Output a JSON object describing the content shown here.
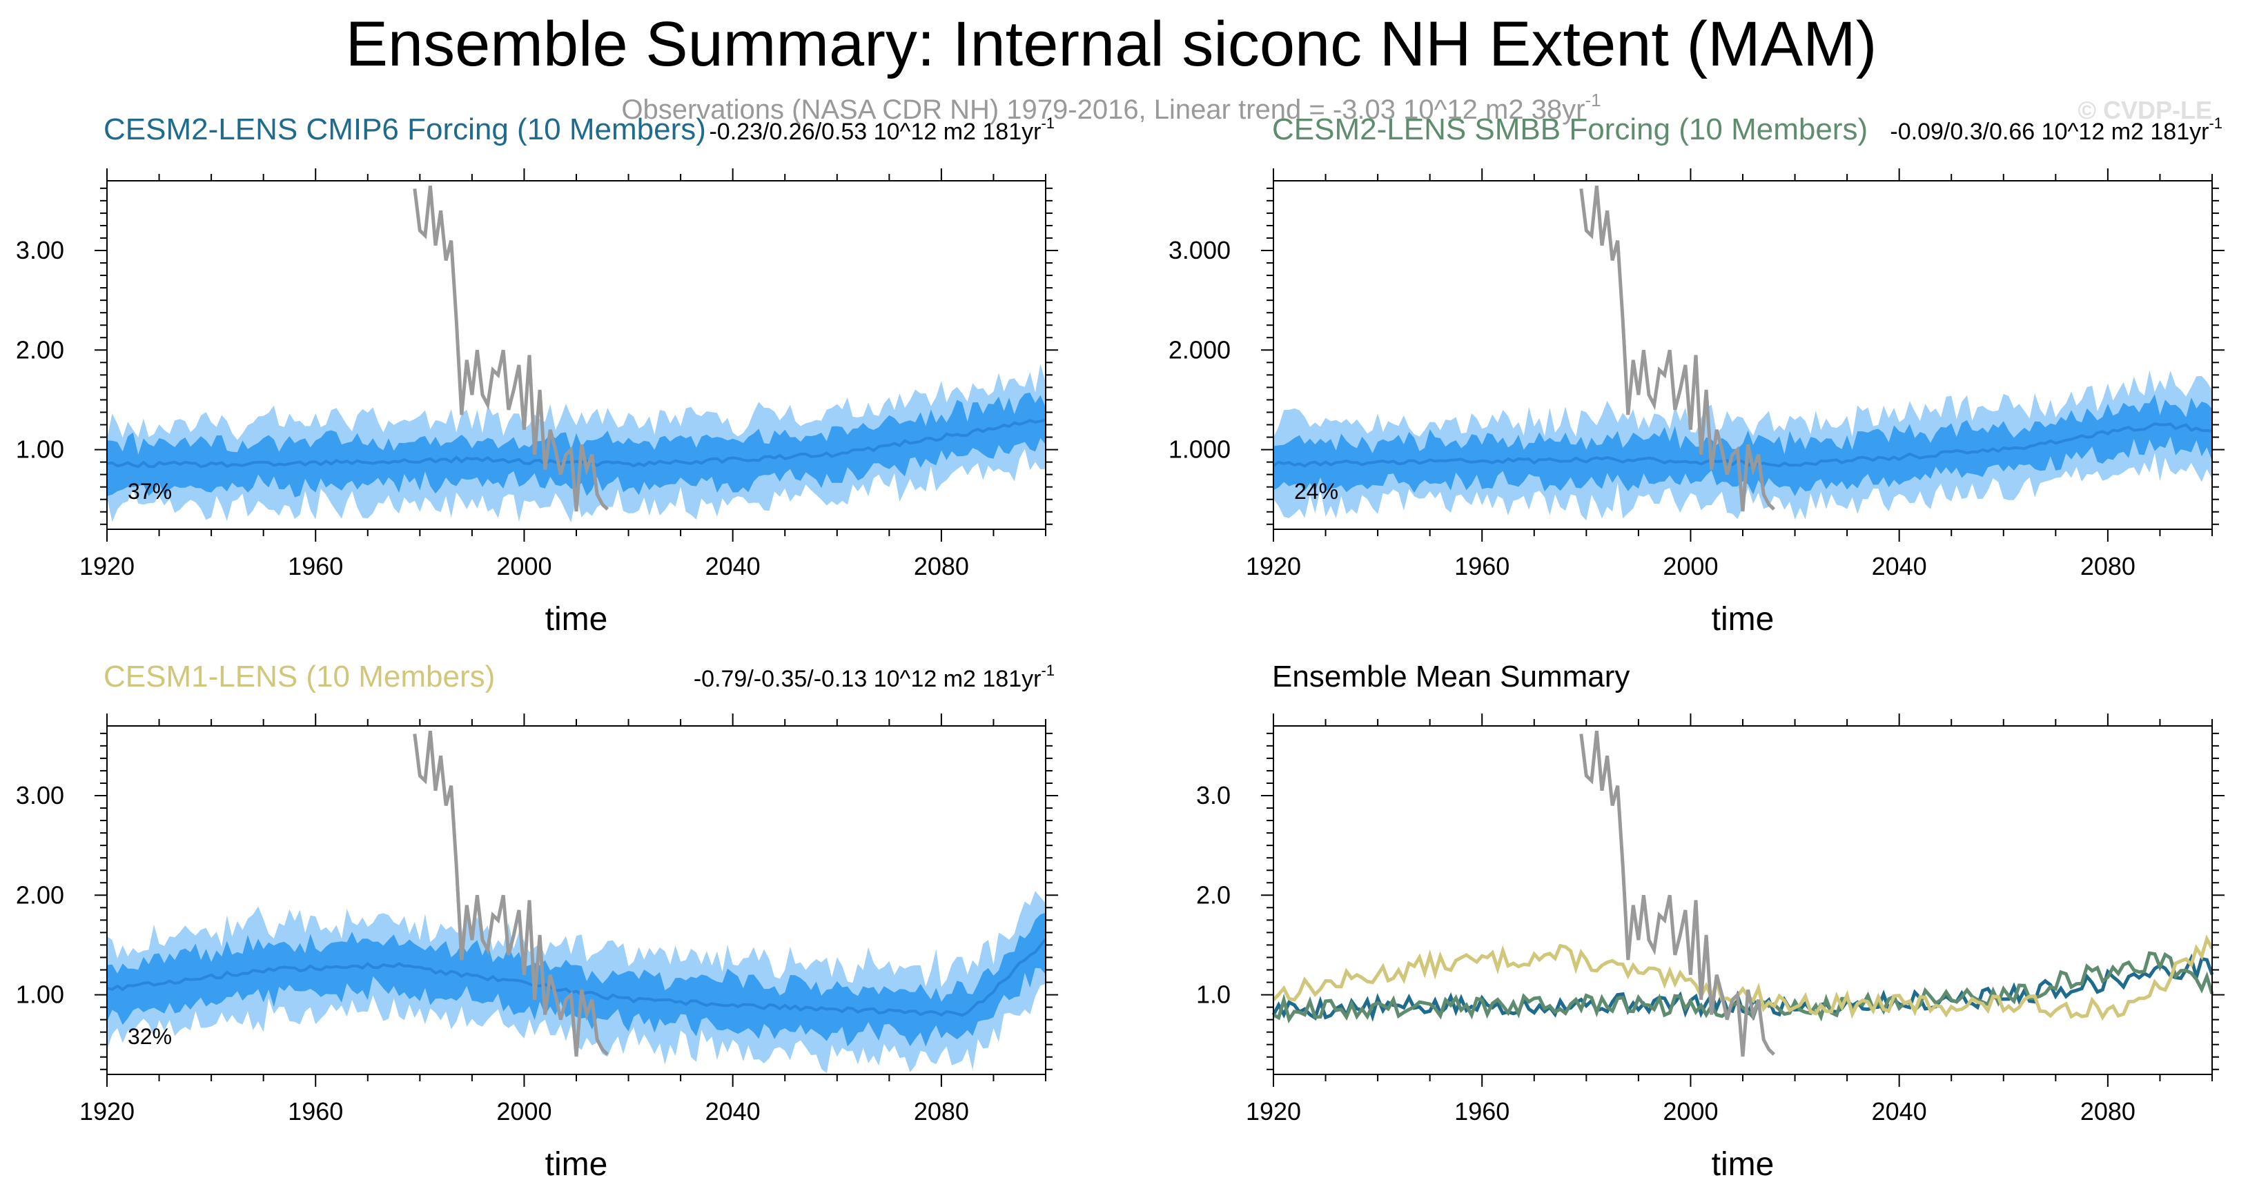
{
  "figure": {
    "title": "Ensemble Summary: Internal siconc NH Extent (MAM)",
    "obs_caption": "Observations (NASA CDR NH) 1979-2016, Linear trend = -3.03 10^12 m2 38yr",
    "obs_caption_sup": "-1",
    "watermark": "© CVDP-LE",
    "colors": {
      "shade_outer": "#9fd0fa",
      "shade_inner": "#3a9ef0",
      "mean_line": "#2a86dc",
      "obs": "#999999",
      "cesm2_cmip6": "#1f6b8e",
      "cesm2_smbb": "#5f8c6e",
      "cesm1": "#d0c77a"
    }
  },
  "chart_data": [
    {
      "type": "area",
      "title": "CESM2-LENS CMIP6 Forcing (10 Members)",
      "title_color": "#1f6b8e",
      "trend_text": "-0.23/0.26/0.53 10^12 m2 181yr",
      "trend_sup": "-1",
      "percent_label": "37%",
      "xlabel": "time",
      "ylabel": "",
      "xlim": [
        1920,
        2100
      ],
      "ylim": [
        0.2,
        3.7
      ],
      "xticks": [
        1920,
        1960,
        2000,
        2040,
        2080
      ],
      "xtick_labels": [
        "1920",
        "1960",
        "2000",
        "2040",
        "2080"
      ],
      "yticks": [
        1.0,
        2.0,
        3.0
      ],
      "ytick_labels": [
        "1.00",
        "2.00",
        "3.00"
      ],
      "series": [
        {
          "name": "ensemble mean",
          "mean_anchors": [
            [
              1920,
              0.85
            ],
            [
              1950,
              0.85
            ],
            [
              1990,
              0.9
            ],
            [
              2020,
              0.85
            ],
            [
              2060,
              0.95
            ],
            [
              2100,
              1.3
            ]
          ],
          "inner_half_width": 0.22,
          "outer_half_width": 0.42,
          "seed": 11
        }
      ]
    },
    {
      "type": "area",
      "title": "CESM2-LENS SMBB Forcing (10 Members)",
      "title_color": "#5f8c6e",
      "trend_text": "-0.09/0.3/0.66 10^12 m2 181yr",
      "trend_sup": "-1",
      "percent_label": "24%",
      "xlabel": "time",
      "ylabel": "",
      "xlim": [
        1920,
        2100
      ],
      "ylim": [
        0.2,
        3.7
      ],
      "xticks": [
        1920,
        1960,
        2000,
        2040,
        2080
      ],
      "xtick_labels": [
        "1920",
        "1960",
        "2000",
        "2040",
        "2080"
      ],
      "yticks": [
        1.0,
        2.0,
        3.0
      ],
      "ytick_labels": [
        "1.000",
        "2.000",
        "3.000"
      ],
      "series": [
        {
          "name": "ensemble mean",
          "mean_anchors": [
            [
              1920,
              0.85
            ],
            [
              1950,
              0.88
            ],
            [
              1990,
              0.9
            ],
            [
              2020,
              0.85
            ],
            [
              2060,
              1.0
            ],
            [
              2090,
              1.25
            ],
            [
              2100,
              1.2
            ]
          ],
          "inner_half_width": 0.22,
          "outer_half_width": 0.42,
          "seed": 23
        }
      ]
    },
    {
      "type": "area",
      "title": "CESM1-LENS (10 Members)",
      "title_color": "#d0c77a",
      "trend_text": "-0.79/-0.35/-0.13 10^12 m2 181yr",
      "trend_sup": "-1",
      "percent_label": "32%",
      "xlabel": "time",
      "ylabel": "",
      "xlim": [
        1920,
        2100
      ],
      "ylim": [
        0.2,
        3.7
      ],
      "xticks": [
        1920,
        1960,
        2000,
        2040,
        2080
      ],
      "xtick_labels": [
        "1920",
        "1960",
        "2000",
        "2040",
        "2080"
      ],
      "yticks": [
        1.0,
        2.0,
        3.0
      ],
      "ytick_labels": [
        "1.00",
        "2.00",
        "3.00"
      ],
      "series": [
        {
          "name": "ensemble mean",
          "mean_anchors": [
            [
              1920,
              1.05
            ],
            [
              1950,
              1.25
            ],
            [
              1975,
              1.3
            ],
            [
              1995,
              1.15
            ],
            [
              2020,
              0.95
            ],
            [
              2060,
              0.85
            ],
            [
              2085,
              0.8
            ],
            [
              2100,
              1.55
            ]
          ],
          "inner_half_width": 0.24,
          "outer_half_width": 0.45,
          "seed": 37
        }
      ]
    },
    {
      "type": "line",
      "title": "Ensemble Mean Summary",
      "title_color": "#000000",
      "trend_text": "",
      "trend_sup": "",
      "percent_label": "",
      "xlabel": "time",
      "ylabel": "",
      "xlim": [
        1920,
        2100
      ],
      "ylim": [
        0.2,
        3.7
      ],
      "xticks": [
        1920,
        1960,
        2000,
        2040,
        2080
      ],
      "xtick_labels": [
        "1920",
        "1960",
        "2000",
        "2040",
        "2080"
      ],
      "yticks": [
        1.0,
        2.0,
        3.0
      ],
      "ytick_labels": [
        "1.0",
        "2.0",
        "3.0"
      ],
      "series": [
        {
          "name": "CESM2-LENS CMIP6 Forcing",
          "color": "#1f6b8e",
          "mean_anchors": [
            [
              1920,
              0.85
            ],
            [
              1950,
              0.88
            ],
            [
              1990,
              0.92
            ],
            [
              2020,
              0.88
            ],
            [
              2060,
              0.98
            ],
            [
              2100,
              1.3
            ]
          ],
          "seed": 5
        },
        {
          "name": "CESM2-LENS SMBB Forcing",
          "color": "#5f8c6e",
          "mean_anchors": [
            [
              1920,
              0.85
            ],
            [
              1950,
              0.88
            ],
            [
              1990,
              0.9
            ],
            [
              2020,
              0.86
            ],
            [
              2060,
              1.0
            ],
            [
              2090,
              1.35
            ],
            [
              2100,
              1.1
            ]
          ],
          "seed": 9
        },
        {
          "name": "CESM1-LENS",
          "color": "#d0c77a",
          "mean_anchors": [
            [
              1920,
              1.0
            ],
            [
              1950,
              1.3
            ],
            [
              1975,
              1.4
            ],
            [
              1995,
              1.15
            ],
            [
              2020,
              0.9
            ],
            [
              2060,
              0.9
            ],
            [
              2085,
              0.85
            ],
            [
              2100,
              1.55
            ]
          ],
          "seed": 13
        }
      ]
    }
  ],
  "observations": {
    "name": "Observations (NASA CDR NH)",
    "years": [
      1979,
      1980,
      1981,
      1982,
      1983,
      1984,
      1985,
      1986,
      1987,
      1988,
      1989,
      1990,
      1991,
      1992,
      1993,
      1994,
      1995,
      1996,
      1997,
      1998,
      1999,
      2000,
      2001,
      2002,
      2003,
      2004,
      2005,
      2006,
      2007,
      2008,
      2009,
      2010,
      2011,
      2012,
      2013,
      2014,
      2015,
      2016
    ],
    "values": [
      3.62,
      3.2,
      3.15,
      3.65,
      3.05,
      3.4,
      2.9,
      3.1,
      2.3,
      1.35,
      1.9,
      1.55,
      2.0,
      1.55,
      1.45,
      1.8,
      1.75,
      2.0,
      1.4,
      1.6,
      1.85,
      1.2,
      1.95,
      0.95,
      1.6,
      0.8,
      1.2,
      1.0,
      0.75,
      0.95,
      1.0,
      0.38,
      1.05,
      0.8,
      0.95,
      0.55,
      0.45,
      0.4
    ]
  }
}
